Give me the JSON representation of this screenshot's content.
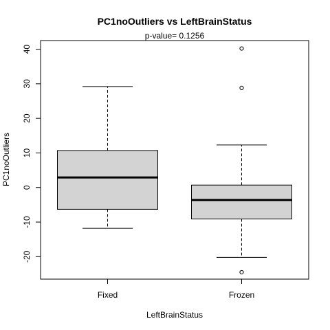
{
  "chart_data": {
    "type": "boxplot",
    "title": "PC1noOutliers  vs  LeftBrainStatus",
    "subtitle": "p-value= 0.1256",
    "xlabel": "LeftBrainStatus",
    "ylabel": "PC1noOutliers",
    "ylim": [
      -26.5,
      42.5
    ],
    "yticks": [
      -20,
      -10,
      0,
      10,
      20,
      30,
      40
    ],
    "categories": [
      "Fixed",
      "Frozen"
    ],
    "boxes": [
      {
        "category": "Fixed",
        "whisker_low": -11.8,
        "q1": -6.3,
        "median": 2.9,
        "q3": 10.7,
        "whisker_high": 29.2,
        "outliers": []
      },
      {
        "category": "Frozen",
        "whisker_low": -20.2,
        "q1": -9.1,
        "median": -3.6,
        "q3": 0.7,
        "whisker_high": 12.3,
        "outliers": [
          40.2,
          28.8,
          -24.5
        ]
      }
    ],
    "colors": {
      "box_fill": "#d3d3d3",
      "stroke": "#000000"
    },
    "grid": false,
    "legend": "none"
  }
}
